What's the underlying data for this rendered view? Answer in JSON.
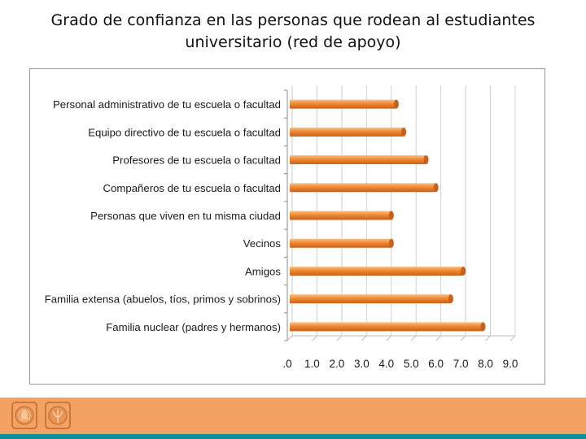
{
  "title": {
    "line1": "Grado de confianza en las personas que rodean al estudiantes",
    "line2": "universitario (red de apoyo)"
  },
  "colors": {
    "bar": "#f0892e",
    "bar_light": "#f9c08a",
    "bar_dark": "#c7601a",
    "grid": "#d0d0d0",
    "footer": "#f4a264",
    "footer_line": "#0e8f9c"
  },
  "chart_data": {
    "type": "bar",
    "orientation": "horizontal",
    "title": "Grado de confianza en las personas que rodean al estudiantes universitario (red de apoyo)",
    "categories": [
      "Personal administrativo de tu escuela o facultad",
      "Equipo directivo de tu escuela o facultad",
      "Profesores de tu escuela o facultad",
      "Compañeros de tu escuela o facultad",
      "Personas que viven en tu misma ciudad",
      "Vecinos",
      "Amigos",
      "Familia extensa (abuelos, tíos, primos y sobrinos)",
      "Familia nuclear (padres y hermanos)"
    ],
    "values": [
      4.4,
      4.7,
      5.6,
      6.0,
      4.2,
      4.2,
      7.1,
      6.6,
      7.9
    ],
    "xlim": [
      0,
      9
    ],
    "xticks": [
      ".0",
      "1.0",
      "2.0",
      "3.0",
      "4.0",
      "5.0",
      "6.0",
      "7.0",
      "8.0",
      "9.0"
    ],
    "xlabel": "",
    "ylabel": "",
    "grid": true
  },
  "footer": {
    "logos": [
      "university-seal",
      "faculty-seal"
    ]
  }
}
